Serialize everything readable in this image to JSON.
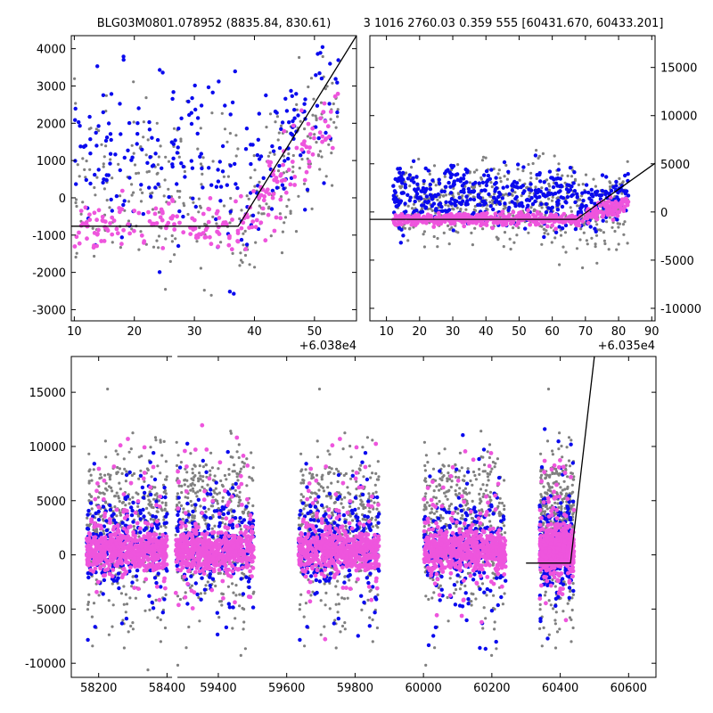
{
  "figure": {
    "left_title": "BLG03M0801.078952 (8835.84, 830.61)",
    "right_title": "3 1016 2760.03 0.359 555 [60431.670, 60433.201]"
  },
  "colors": {
    "gray": "#808080",
    "blue": "#0a0aee",
    "magenta": "#ee55dd",
    "model": "#000000"
  },
  "chart_data": [
    {
      "id": "top-left",
      "type": "scatter",
      "title": "",
      "xlabel": "",
      "ylabel": "",
      "x_offset_label": "+6.038e4",
      "xlim": [
        9.5,
        57
      ],
      "ylim": [
        -3300,
        4350
      ],
      "xticks": [
        10,
        20,
        30,
        40,
        50
      ],
      "yticks": [
        -3000,
        -2000,
        -1000,
        0,
        1000,
        2000,
        3000,
        4000
      ],
      "ytick_side": "left",
      "model_line": [
        [
          9.5,
          -760
        ],
        [
          37.3,
          -760
        ],
        [
          57,
          4350
        ]
      ]
    },
    {
      "id": "top-right",
      "type": "scatter",
      "title": "",
      "xlabel": "",
      "ylabel": "",
      "x_offset_label": "+6.035e4",
      "xlim": [
        5,
        91
      ],
      "ylim": [
        -11300,
        18300
      ],
      "xticks": [
        10,
        20,
        30,
        40,
        50,
        60,
        70,
        80,
        90
      ],
      "yticks": [
        -10000,
        -5000,
        0,
        5000,
        10000,
        15000
      ],
      "ytick_side": "right",
      "model_line": [
        [
          5,
          -760
        ],
        [
          67.3,
          -760
        ],
        [
          91,
          5050
        ]
      ]
    },
    {
      "id": "bottom",
      "type": "scatter",
      "title": "",
      "xlabel": "",
      "ylabel": "",
      "xlim": [
        58120,
        60680
      ],
      "ylim": [
        -11300,
        18300
      ],
      "xticks": [
        58200,
        58400,
        59400,
        59600,
        59800,
        60000,
        60200,
        60400,
        60600
      ],
      "yticks": [
        -10000,
        -5000,
        0,
        5000,
        10000,
        15000
      ],
      "ytick_side": "left",
      "axis_break_x": [
        58420,
        59270
      ],
      "model_line": [
        [
          60300,
          -760
        ],
        [
          60430,
          -760
        ],
        [
          60500,
          18300
        ]
      ],
      "seasons": [
        [
          58165,
          58400
        ],
        [
          59275,
          59505
        ],
        [
          59635,
          59870
        ],
        [
          60000,
          60240
        ],
        [
          60340,
          60440
        ]
      ]
    }
  ]
}
